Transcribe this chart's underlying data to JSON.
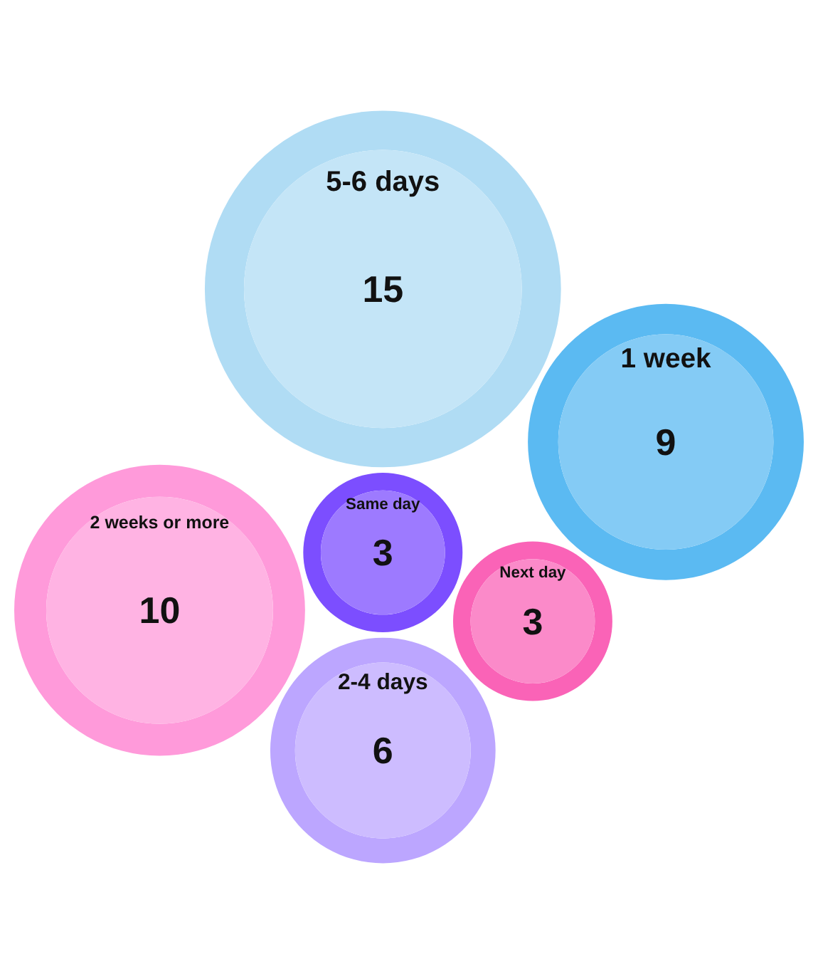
{
  "chart_data": {
    "type": "other",
    "categories": [
      "Same day",
      "2-4 days",
      "5-6 days",
      "2 weeks or more",
      "Next day",
      "1 week"
    ],
    "values": [
      3,
      6,
      15,
      10,
      3,
      9
    ],
    "colors": [
      "#9d7aff",
      "#cdbcff",
      "#c4e5f7",
      "#ffb3e3",
      "#fb8ac9",
      "#84cbf5"
    ],
    "data_labels": true
  }
}
